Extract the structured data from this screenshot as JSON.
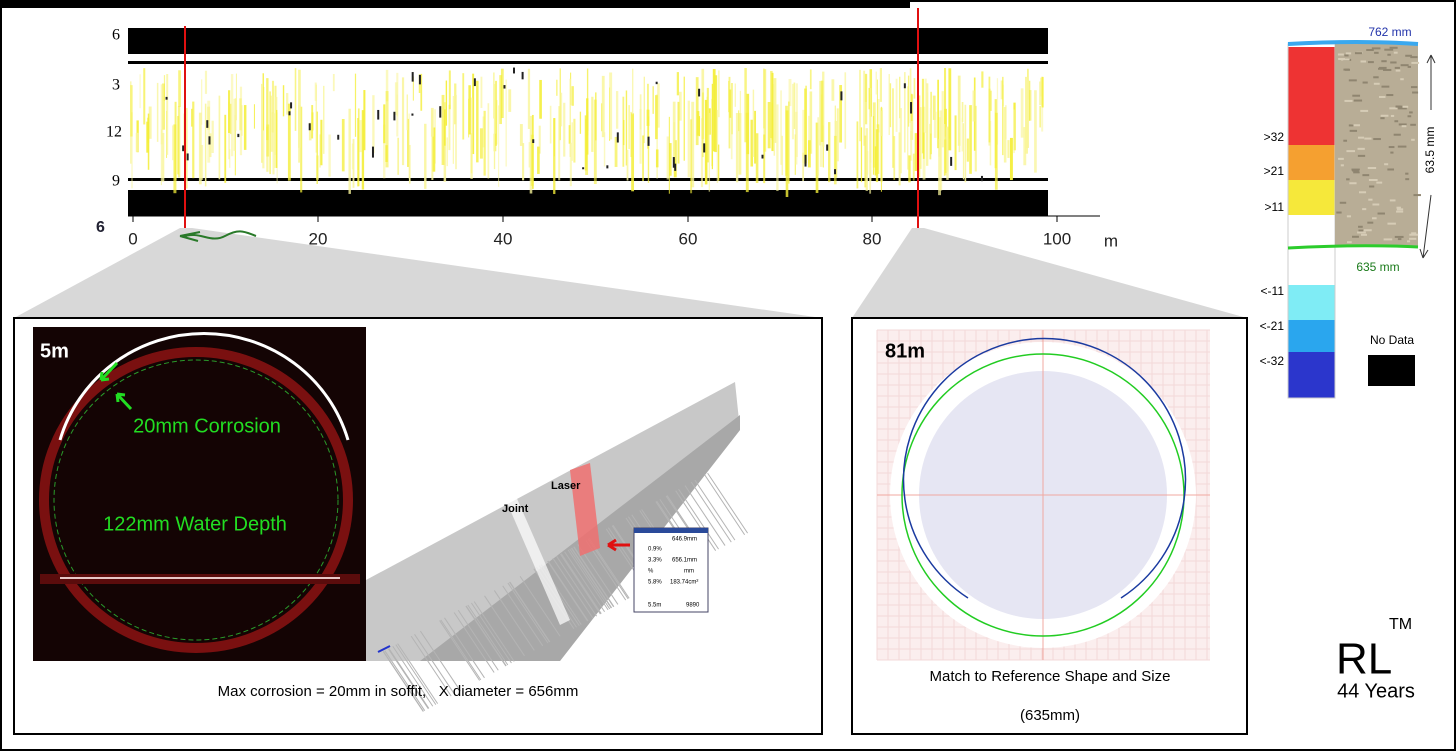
{
  "unrolled": {
    "clock_labels": [
      "6",
      "3",
      "12",
      "9",
      "6"
    ],
    "x_ticks": [
      "0",
      "20",
      "40",
      "60",
      "80",
      "100"
    ],
    "x_unit": "m"
  },
  "legend": {
    "top": "762 mm",
    "bottom": "635 mm",
    "span": "63.5 mm",
    "bands": [
      ">32",
      ">21",
      ">11",
      "<-11",
      "<-21",
      "<-32"
    ],
    "no_data": "No Data"
  },
  "panel_5m": {
    "label": "5m",
    "callouts": [
      "20mm Corrosion",
      "122mm Water Depth"
    ],
    "pipe_labels": [
      "Laser",
      "Joint"
    ],
    "readout": [
      "646.9mm",
      "0.9%",
      "3.3%",
      "656.1mm",
      "%",
      "mm",
      "5.8%",
      "183.74cm²",
      "5.5m",
      "9890"
    ],
    "caption": "Max corrosion = 20mm in soffit,   X diameter = 656mm"
  },
  "panel_81m": {
    "label": "81m",
    "caption": [
      "Match to Reference Shape and Size",
      "(635mm)"
    ]
  },
  "brand": {
    "name": "RL",
    "tm": "TM",
    "years": "44 Years"
  }
}
